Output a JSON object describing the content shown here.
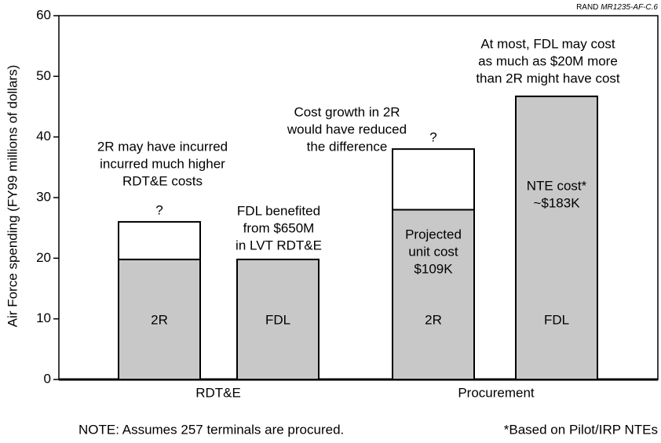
{
  "chart_data": {
    "type": "stacked_bar",
    "source": "RAND",
    "source_id": "MR1235-AF-C.6",
    "ylabel": "Air Force spending (FY99 millions of dollars)",
    "ylim": [
      0,
      60
    ],
    "yticks": [
      0,
      10,
      20,
      30,
      40,
      50,
      60
    ],
    "categories": [
      "RDT&E",
      "Procurement"
    ],
    "segment_colors": [
      "#c8c8c8",
      "#ffffff"
    ],
    "bars": [
      {
        "label": "2R",
        "values": [
          19.8,
          6.2
        ],
        "inner_text": [],
        "annotation": [
          "2R may have incurred",
          "incurred much higher",
          "RDT&E costs"
        ],
        "marker": "?"
      },
      {
        "label": "FDL",
        "values": [
          19.8
        ],
        "inner_text": [],
        "annotation": [
          "FDL benefited",
          "from $650M",
          "in LVT RDT&E"
        ]
      },
      {
        "label": "2R",
        "values": [
          28,
          10
        ],
        "inner_text": [
          "Projected",
          "unit cost",
          "$109K"
        ],
        "annotation": [
          "Cost growth in 2R",
          "would have reduced",
          "the difference"
        ],
        "marker": "?"
      },
      {
        "label": "FDL",
        "values": [
          46.7
        ],
        "inner_text": [
          "NTE cost*",
          "~$183K"
        ],
        "annotation": [
          "At most, FDL may cost",
          "as much as $20M more",
          "than 2R might have cost"
        ]
      }
    ],
    "notes": [
      "NOTE:  Assumes 257 terminals are procured.",
      "*Based on Pilot/IRP NTEs"
    ]
  }
}
